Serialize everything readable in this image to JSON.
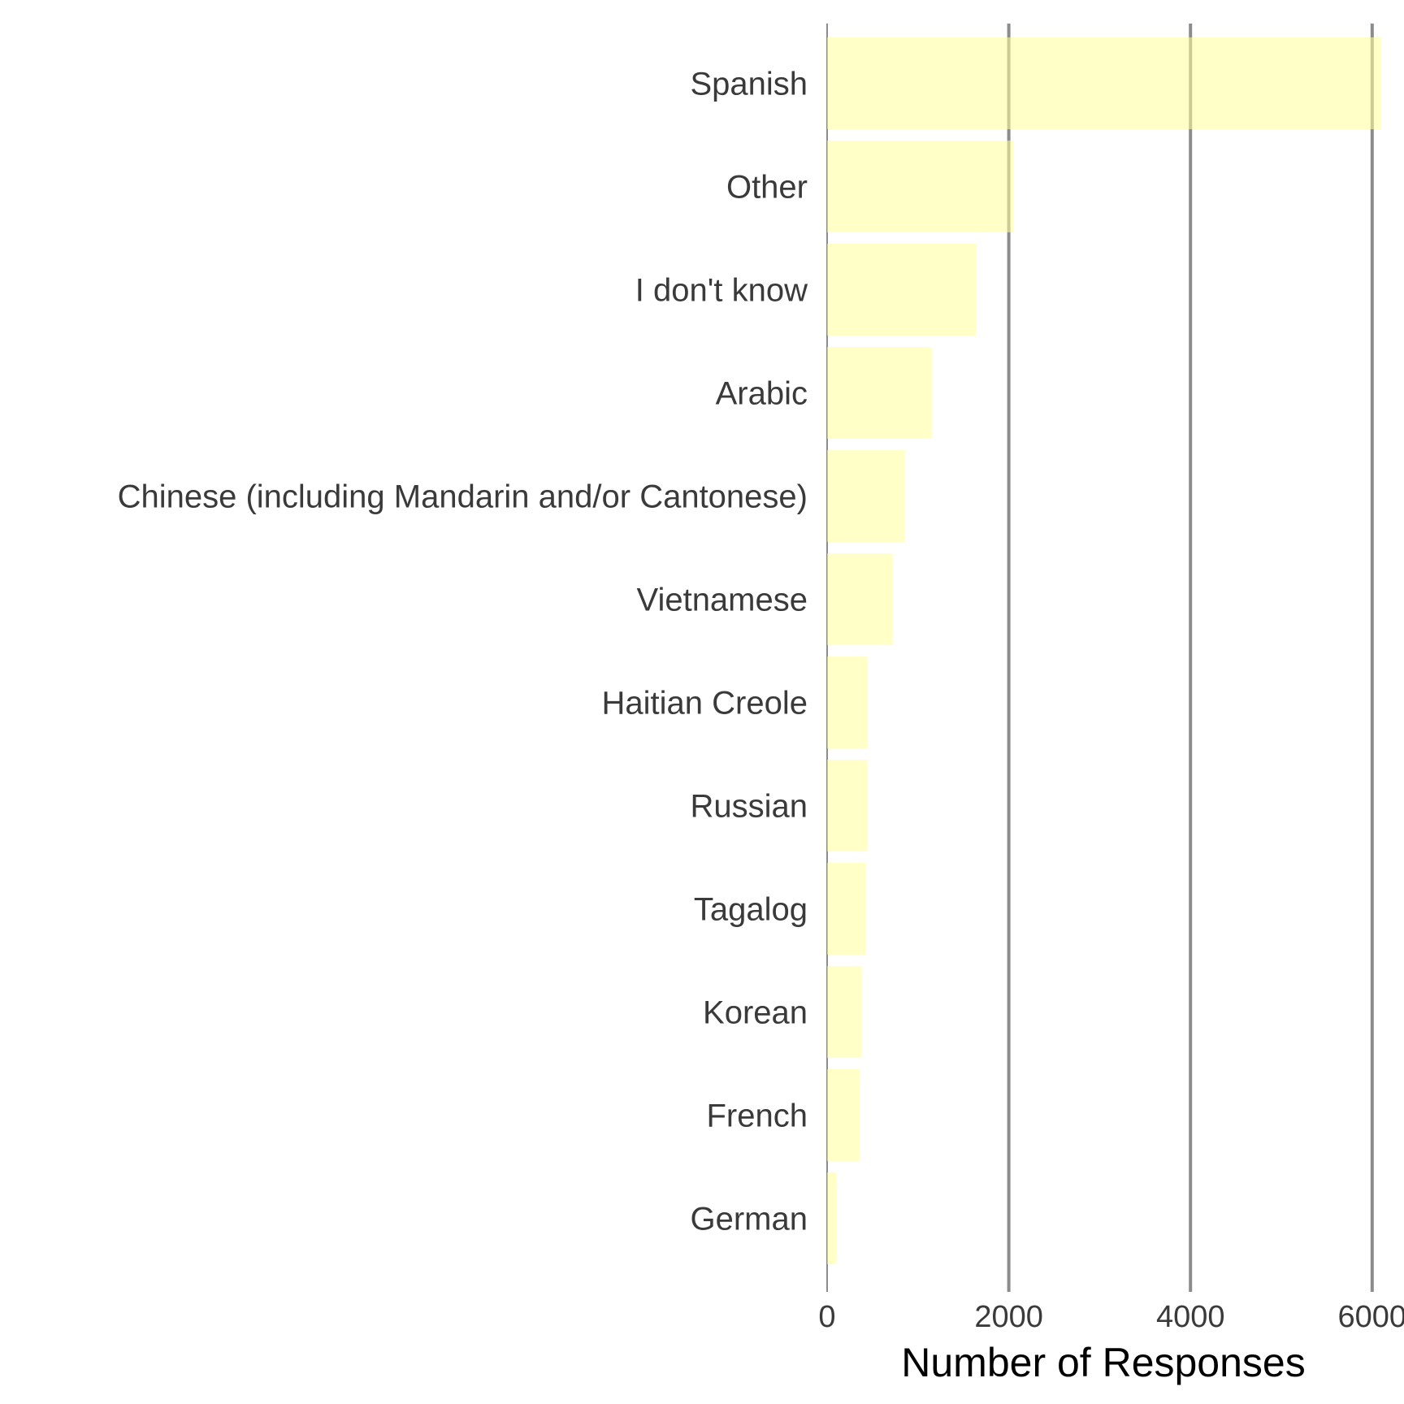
{
  "chart_data": {
    "type": "bar",
    "orientation": "horizontal",
    "categories": [
      "Spanish",
      "Other",
      "I don't know",
      "Arabic",
      "Chinese (including Mandarin and/or Cantonese)",
      "Vietnamese",
      "Haitian Creole",
      "Russian",
      "Tagalog",
      "Korean",
      "French",
      "German"
    ],
    "values": [
      6100,
      2050,
      1640,
      1150,
      850,
      720,
      440,
      440,
      420,
      380,
      360,
      100
    ],
    "xlabel": "Number of Responses",
    "ylabel": "",
    "xlim": [
      0,
      6100
    ],
    "xticks": [
      0,
      2000,
      4000,
      6000
    ],
    "xtick_labels": [
      "0",
      "2000",
      "4000",
      "6000"
    ],
    "grid": "vertical major lines",
    "legend": "none",
    "colors": {
      "bar": "#ffff99",
      "bar_opacity": 0.55,
      "grid": "#8c8c8c"
    }
  }
}
